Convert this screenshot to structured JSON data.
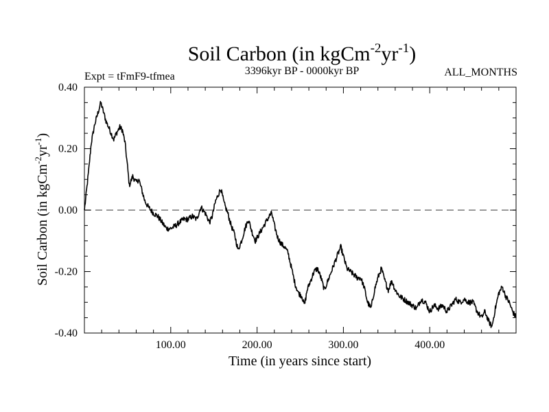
{
  "chart_data": {
    "type": "line",
    "title": "Soil Carbon (in kgCm",
    "title_sup1": "-2",
    "title_mid": "yr",
    "title_sup2": "-1",
    "title_end": ")",
    "subtitle_left": "Expt = tFmF9-tfmea",
    "subtitle_center": "3396kyr BP - 0000kyr BP",
    "subtitle_right": "ALL_MONTHS",
    "xlabel": "Time (in years since start)",
    "ylabel": "Soil Carbon (in kgCm",
    "ylabel_sup1": "-2",
    "ylabel_mid": "yr",
    "ylabel_sup2": "-1",
    "ylabel_end": ")",
    "xlim": [
      0,
      500
    ],
    "ylim": [
      -0.4,
      0.4
    ],
    "x_ticks": [
      100,
      200,
      300,
      400
    ],
    "x_tick_labels": [
      "100.00",
      "200.00",
      "300.00",
      "400.00"
    ],
    "y_ticks": [
      0.4,
      0.2,
      0.0,
      -0.2,
      -0.4
    ],
    "y_tick_labels": [
      "0.40",
      "0.20",
      "0.00",
      "-0.20",
      "-0.40"
    ],
    "zero_line": 0.0,
    "line_color": "#000000",
    "zero_line_color": "#777777",
    "series": [
      {
        "name": "Soil Carbon",
        "anchors": [
          [
            0,
            0.0
          ],
          [
            2,
            0.05
          ],
          [
            5,
            0.13
          ],
          [
            8,
            0.22
          ],
          [
            12,
            0.28
          ],
          [
            15,
            0.31
          ],
          [
            19,
            0.35
          ],
          [
            22,
            0.32
          ],
          [
            25,
            0.29
          ],
          [
            28,
            0.27
          ],
          [
            31,
            0.25
          ],
          [
            34,
            0.23
          ],
          [
            37,
            0.25
          ],
          [
            41,
            0.27
          ],
          [
            44,
            0.26
          ],
          [
            47,
            0.22
          ],
          [
            50,
            0.14
          ],
          [
            52,
            0.08
          ],
          [
            56,
            0.11
          ],
          [
            60,
            0.09
          ],
          [
            63,
            0.1
          ],
          [
            66,
            0.07
          ],
          [
            70,
            0.03
          ],
          [
            74,
            0.01
          ],
          [
            80,
            -0.01
          ],
          [
            85,
            -0.02
          ],
          [
            90,
            -0.04
          ],
          [
            95,
            -0.06
          ],
          [
            100,
            -0.06
          ],
          [
            106,
            -0.05
          ],
          [
            110,
            -0.04
          ],
          [
            115,
            -0.03
          ],
          [
            120,
            -0.03
          ],
          [
            125,
            -0.02
          ],
          [
            130,
            -0.03
          ],
          [
            135,
            0.01
          ],
          [
            140,
            -0.01
          ],
          [
            145,
            -0.04
          ],
          [
            148,
            -0.02
          ],
          [
            152,
            0.03
          ],
          [
            155,
            0.05
          ],
          [
            158,
            0.07
          ],
          [
            162,
            0.02
          ],
          [
            166,
            -0.01
          ],
          [
            170,
            -0.05
          ],
          [
            174,
            -0.08
          ],
          [
            178,
            -0.13
          ],
          [
            182,
            -0.1
          ],
          [
            186,
            -0.06
          ],
          [
            190,
            -0.03
          ],
          [
            194,
            -0.07
          ],
          [
            198,
            -0.1
          ],
          [
            202,
            -0.08
          ],
          [
            206,
            -0.06
          ],
          [
            210,
            -0.04
          ],
          [
            214,
            -0.02
          ],
          [
            217,
            -0.01
          ],
          [
            220,
            -0.05
          ],
          [
            224,
            -0.09
          ],
          [
            228,
            -0.11
          ],
          [
            232,
            -0.12
          ],
          [
            236,
            -0.14
          ],
          [
            240,
            -0.19
          ],
          [
            244,
            -0.24
          ],
          [
            248,
            -0.27
          ],
          [
            252,
            -0.28
          ],
          [
            255,
            -0.31
          ],
          [
            258,
            -0.26
          ],
          [
            262,
            -0.23
          ],
          [
            266,
            -0.2
          ],
          [
            270,
            -0.19
          ],
          [
            274,
            -0.22
          ],
          [
            278,
            -0.26
          ],
          [
            282,
            -0.23
          ],
          [
            286,
            -0.2
          ],
          [
            290,
            -0.17
          ],
          [
            294,
            -0.14
          ],
          [
            297,
            -0.12
          ],
          [
            300,
            -0.15
          ],
          [
            304,
            -0.19
          ],
          [
            308,
            -0.2
          ],
          [
            312,
            -0.21
          ],
          [
            316,
            -0.22
          ],
          [
            320,
            -0.22
          ],
          [
            324,
            -0.25
          ],
          [
            328,
            -0.3
          ],
          [
            332,
            -0.32
          ],
          [
            336,
            -0.26
          ],
          [
            340,
            -0.22
          ],
          [
            344,
            -0.19
          ],
          [
            348,
            -0.23
          ],
          [
            352,
            -0.26
          ],
          [
            356,
            -0.23
          ],
          [
            360,
            -0.26
          ],
          [
            365,
            -0.28
          ],
          [
            370,
            -0.29
          ],
          [
            375,
            -0.3
          ],
          [
            380,
            -0.31
          ],
          [
            385,
            -0.32
          ],
          [
            390,
            -0.29
          ],
          [
            395,
            -0.3
          ],
          [
            400,
            -0.33
          ],
          [
            405,
            -0.31
          ],
          [
            410,
            -0.32
          ],
          [
            415,
            -0.31
          ],
          [
            420,
            -0.33
          ],
          [
            425,
            -0.31
          ],
          [
            430,
            -0.29
          ],
          [
            435,
            -0.3
          ],
          [
            440,
            -0.29
          ],
          [
            445,
            -0.3
          ],
          [
            450,
            -0.3
          ],
          [
            455,
            -0.33
          ],
          [
            460,
            -0.35
          ],
          [
            464,
            -0.33
          ],
          [
            468,
            -0.36
          ],
          [
            472,
            -0.38
          ],
          [
            476,
            -0.32
          ],
          [
            480,
            -0.27
          ],
          [
            484,
            -0.25
          ],
          [
            488,
            -0.28
          ],
          [
            492,
            -0.3
          ],
          [
            496,
            -0.33
          ],
          [
            500,
            -0.35
          ]
        ]
      }
    ]
  }
}
